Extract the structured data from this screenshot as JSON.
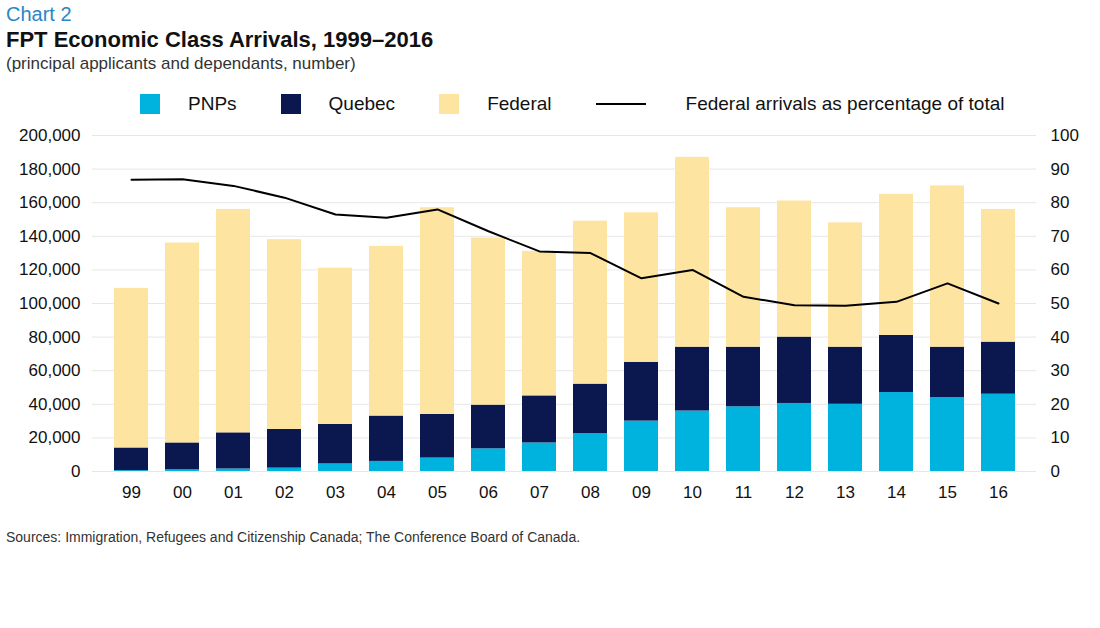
{
  "chart_data": {
    "type": "bar",
    "stacked": true,
    "chart_number": "Chart 2",
    "title": "FPT Economic Class Arrivals, 1999–2016",
    "subtitle": "(principal applicants and dependants, number)",
    "source": "Sources: Immigration, Refugees and Citizenship Canada; The Conference Board of Canada.",
    "categories": [
      "99",
      "00",
      "01",
      "02",
      "03",
      "04",
      "05",
      "06",
      "07",
      "08",
      "09",
      "10",
      "11",
      "12",
      "13",
      "14",
      "15",
      "16"
    ],
    "series": [
      {
        "name": "PNPs",
        "color": "#00b3de",
        "values": [
          500,
          1000,
          1500,
          2000,
          4500,
          6000,
          8000,
          13500,
          17000,
          22500,
          30000,
          36000,
          38500,
          40500,
          40000,
          47000,
          44000,
          46000
        ]
      },
      {
        "name": "Quebec",
        "color": "#0b1850",
        "values": [
          13500,
          16000,
          21500,
          23000,
          23500,
          27000,
          26000,
          26000,
          28000,
          29500,
          35000,
          38000,
          35500,
          39500,
          34000,
          34000,
          30000,
          31000
        ]
      },
      {
        "name": "Federal",
        "color": "#fde4a0",
        "values": [
          95000,
          119000,
          133000,
          113000,
          93000,
          101000,
          123000,
          99500,
          86000,
          97000,
          89000,
          113000,
          83000,
          81000,
          74000,
          84000,
          96000,
          79000
        ]
      },
      {
        "name": "Federal arrivals as percentage of total",
        "type": "line",
        "axis": "y2",
        "color": "#000000",
        "values": [
          86.8,
          87,
          85,
          81.5,
          76.5,
          75.5,
          78,
          71.5,
          65.5,
          65,
          57.5,
          60,
          52,
          49.5,
          49.3,
          50.5,
          56,
          50
        ]
      }
    ],
    "ylim": [
      0,
      200000
    ],
    "yticks": [
      0,
      {
        "value": 20000,
        "label": "20,000"
      },
      {
        "value": 40000,
        "label": "40,000"
      },
      {
        "value": 60000,
        "label": "60,000"
      },
      {
        "value": 80000,
        "label": "80,000"
      },
      {
        "value": 100000,
        "label": "100,000"
      },
      {
        "value": 120000,
        "label": "120,000"
      },
      {
        "value": 140000,
        "label": "140,000"
      },
      {
        "value": 160000,
        "label": "160,000"
      },
      {
        "value": 180000,
        "label": "180,000"
      },
      {
        "value": 200000,
        "label": "200,000"
      }
    ],
    "y2lim": [
      0,
      100
    ],
    "y2ticks": [
      0,
      10,
      20,
      30,
      40,
      50,
      60,
      70,
      80,
      90,
      100
    ],
    "grid": true,
    "legend": "top"
  }
}
